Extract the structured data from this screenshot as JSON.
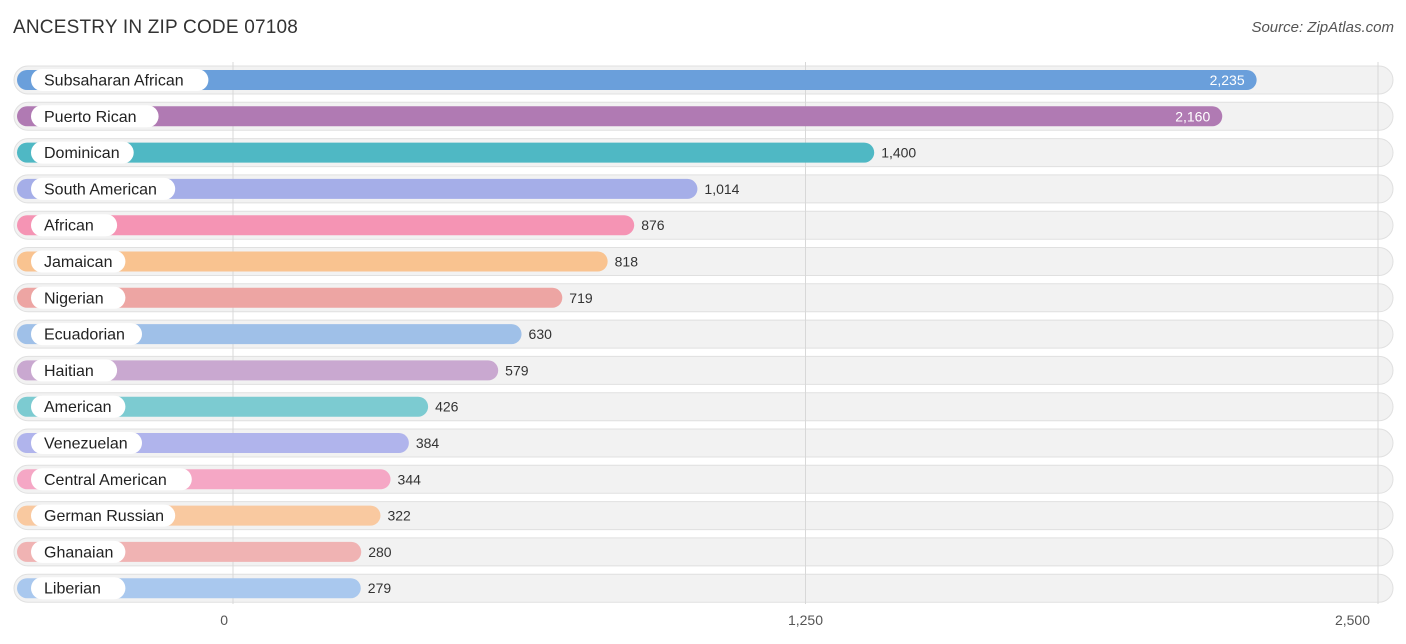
{
  "header": {
    "title": "ANCESTRY IN ZIP CODE 07108",
    "source": "Source: ZipAtlas.com"
  },
  "chart_data": {
    "type": "bar",
    "orientation": "horizontal",
    "title": "ANCESTRY IN ZIP CODE 07108",
    "categories": [
      "Subsaharan African",
      "Puerto Rican",
      "Dominican",
      "South American",
      "African",
      "Jamaican",
      "Nigerian",
      "Ecuadorian",
      "Haitian",
      "American",
      "Venezuelan",
      "Central American",
      "German Russian",
      "Ghanaian",
      "Liberian"
    ],
    "values": [
      2235,
      2160,
      1400,
      1014,
      876,
      818,
      719,
      630,
      579,
      426,
      384,
      344,
      322,
      280,
      279
    ],
    "value_labels": [
      "2,235",
      "2,160",
      "1,400",
      "1,014",
      "876",
      "818",
      "719",
      "630",
      "579",
      "426",
      "384",
      "344",
      "322",
      "280",
      "279"
    ],
    "colors": [
      "#6a9fdb",
      "#b07ab3",
      "#4fb8c4",
      "#a5aee8",
      "#f594b4",
      "#f9c390",
      "#eda5a3",
      "#9fc0e8",
      "#c9a8d0",
      "#7ccbd1",
      "#b0b4ec",
      "#f5a7c5",
      "#f9c9a0",
      "#f0b3b3",
      "#a9c8ee"
    ],
    "xlim": [
      0,
      2500
    ],
    "xticks": [
      0,
      1250,
      2500
    ],
    "xtick_labels": [
      "0",
      "1,250",
      "2,500"
    ],
    "grid": true
  }
}
